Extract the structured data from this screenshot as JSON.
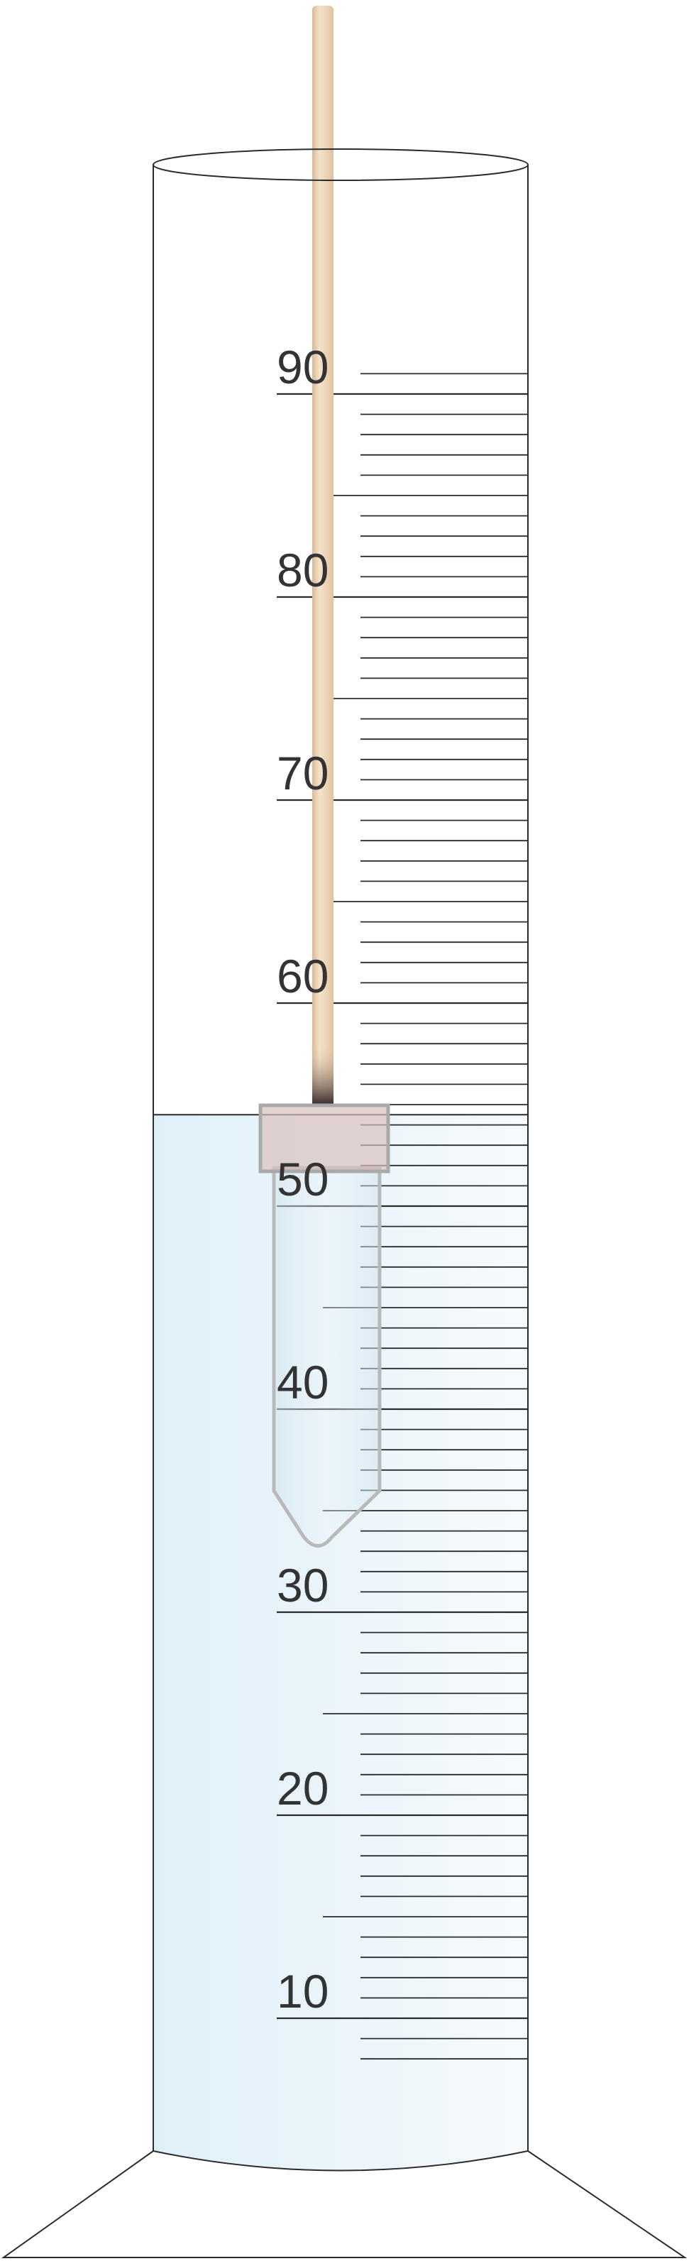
{
  "cylinder": {
    "scale_labels": [
      "90",
      "80",
      "70",
      "60",
      "50",
      "40",
      "30",
      "20",
      "10"
    ],
    "graduation": {
      "min_ml": 8,
      "max_ml": 91,
      "major_every_ml": 10,
      "mid_every_ml": 5,
      "minor_every_ml": 1
    },
    "liquid_level_ml": 54.5
  },
  "colors": {
    "outline": "#2b2b2b",
    "liquid_light": "#e0f0f9",
    "liquid_fade": "#f6fafc",
    "stick": "#ecd2b2",
    "stick_edge": "#d8b896",
    "tube_outline": "#b9b9b9",
    "stopper": "#d9c2bd",
    "label_text": "#333333"
  }
}
